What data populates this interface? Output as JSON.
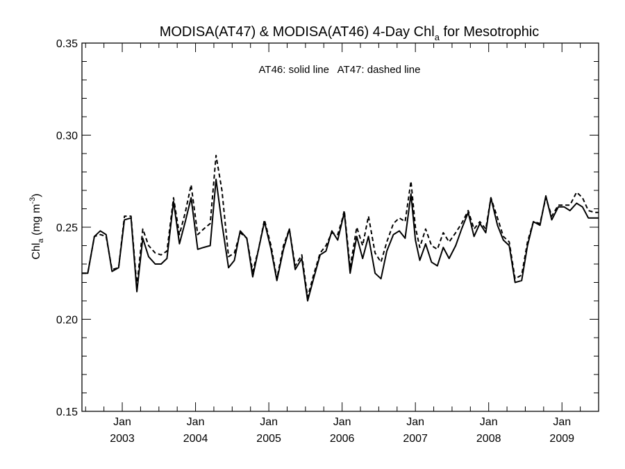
{
  "chart_data": {
    "type": "line",
    "title": "MODISA(AT47) & MODISA(AT46) 4-Day Chl",
    "title_subscript": "a",
    "title_suffix": " for Mesotrophic",
    "ylabel_main": "Chl",
    "ylabel_sub": "a",
    "ylabel_units": " (mg m",
    "ylabel_sup": "-3",
    "ylabel_close": ")",
    "annotation": "AT46: solid line   AT47: dashed line",
    "ylim": [
      0.15,
      0.35
    ],
    "xlim": [
      2002.45,
      2009.5
    ],
    "y_ticks": [
      "0.15",
      "0.20",
      "0.25",
      "0.30",
      "0.35"
    ],
    "x_tick_month": "Jan",
    "x_ticks": [
      "2003",
      "2004",
      "2005",
      "2006",
      "2007",
      "2008",
      "2009"
    ],
    "grid": false,
    "series": [
      {
        "name": "AT46",
        "style": "solid",
        "x": [
          2002.45,
          2002.53,
          2002.62,
          2002.7,
          2002.78,
          2002.86,
          2002.95,
          2003.03,
          2003.12,
          2003.2,
          2003.28,
          2003.36,
          2003.45,
          2003.53,
          2003.61,
          2003.7,
          2003.78,
          2003.86,
          2003.94,
          2004.03,
          2004.11,
          2004.2,
          2004.28,
          2004.36,
          2004.45,
          2004.53,
          2004.61,
          2004.7,
          2004.78,
          2004.86,
          2004.94,
          2005.03,
          2005.11,
          2005.2,
          2005.28,
          2005.36,
          2005.45,
          2005.53,
          2005.61,
          2005.7,
          2005.78,
          2005.86,
          2005.94,
          2006.0,
          2006.03,
          2006.11,
          2006.2,
          2006.28,
          2006.36,
          2006.45,
          2006.53,
          2006.61,
          2006.7,
          2006.78,
          2006.86,
          2006.94,
          2007.0,
          2007.06,
          2007.14,
          2007.22,
          2007.3,
          2007.38,
          2007.46,
          2007.55,
          2007.63,
          2007.72,
          2007.8,
          2007.88,
          2007.96,
          2008.03,
          2008.12,
          2008.2,
          2008.28,
          2008.36,
          2008.45,
          2008.53,
          2008.61,
          2008.7,
          2008.78,
          2008.86,
          2008.95,
          2009.03,
          2009.11,
          2009.2,
          2009.28,
          2009.36,
          2009.45,
          2009.5
        ],
        "values": [
          0.225,
          0.225,
          0.245,
          0.248,
          0.246,
          0.226,
          0.228,
          0.254,
          0.255,
          0.215,
          0.244,
          0.234,
          0.23,
          0.23,
          0.233,
          0.264,
          0.241,
          0.253,
          0.266,
          0.238,
          0.239,
          0.24,
          0.276,
          0.252,
          0.228,
          0.232,
          0.248,
          0.244,
          0.223,
          0.238,
          0.253,
          0.238,
          0.221,
          0.238,
          0.249,
          0.227,
          0.233,
          0.21,
          0.222,
          0.235,
          0.237,
          0.248,
          0.243,
          0.253,
          0.258,
          0.225,
          0.245,
          0.233,
          0.245,
          0.225,
          0.222,
          0.237,
          0.246,
          0.248,
          0.244,
          0.268,
          0.243,
          0.232,
          0.241,
          0.231,
          0.229,
          0.239,
          0.233,
          0.24,
          0.249,
          0.258,
          0.245,
          0.252,
          0.247,
          0.266,
          0.251,
          0.243,
          0.24,
          0.22,
          0.221,
          0.24,
          0.253,
          0.251,
          0.267,
          0.254,
          0.261,
          0.261,
          0.259,
          0.263,
          0.261,
          0.255,
          0.255,
          0.255
        ]
      },
      {
        "name": "AT47",
        "style": "dashed",
        "x": [
          2002.45,
          2002.53,
          2002.62,
          2002.7,
          2002.78,
          2002.86,
          2002.95,
          2003.03,
          2003.12,
          2003.2,
          2003.28,
          2003.36,
          2003.45,
          2003.53,
          2003.61,
          2003.7,
          2003.78,
          2003.86,
          2003.94,
          2004.03,
          2004.11,
          2004.2,
          2004.28,
          2004.36,
          2004.45,
          2004.53,
          2004.61,
          2004.7,
          2004.78,
          2004.86,
          2004.94,
          2005.03,
          2005.11,
          2005.2,
          2005.28,
          2005.36,
          2005.45,
          2005.53,
          2005.61,
          2005.7,
          2005.78,
          2005.86,
          2005.94,
          2006.0,
          2006.03,
          2006.11,
          2006.2,
          2006.28,
          2006.36,
          2006.45,
          2006.53,
          2006.61,
          2006.7,
          2006.78,
          2006.86,
          2006.94,
          2007.0,
          2007.06,
          2007.14,
          2007.22,
          2007.3,
          2007.38,
          2007.46,
          2007.55,
          2007.63,
          2007.72,
          2007.8,
          2007.88,
          2007.96,
          2008.03,
          2008.12,
          2008.2,
          2008.28,
          2008.36,
          2008.45,
          2008.53,
          2008.61,
          2008.7,
          2008.78,
          2008.86,
          2008.95,
          2009.03,
          2009.11,
          2009.2,
          2009.28,
          2009.36,
          2009.45,
          2009.5
        ],
        "values": [
          0.225,
          0.225,
          0.245,
          0.246,
          0.245,
          0.227,
          0.228,
          0.256,
          0.256,
          0.218,
          0.249,
          0.24,
          0.236,
          0.235,
          0.237,
          0.266,
          0.246,
          0.258,
          0.273,
          0.246,
          0.249,
          0.252,
          0.289,
          0.27,
          0.234,
          0.236,
          0.247,
          0.244,
          0.226,
          0.238,
          0.254,
          0.24,
          0.222,
          0.24,
          0.249,
          0.229,
          0.235,
          0.212,
          0.224,
          0.236,
          0.24,
          0.247,
          0.246,
          0.254,
          0.259,
          0.228,
          0.25,
          0.24,
          0.256,
          0.236,
          0.231,
          0.242,
          0.252,
          0.255,
          0.253,
          0.275,
          0.25,
          0.239,
          0.249,
          0.24,
          0.238,
          0.247,
          0.242,
          0.247,
          0.252,
          0.259,
          0.249,
          0.253,
          0.249,
          0.266,
          0.255,
          0.245,
          0.242,
          0.222,
          0.224,
          0.242,
          0.253,
          0.252,
          0.266,
          0.256,
          0.262,
          0.262,
          0.262,
          0.269,
          0.266,
          0.259,
          0.258,
          0.258
        ]
      }
    ]
  }
}
